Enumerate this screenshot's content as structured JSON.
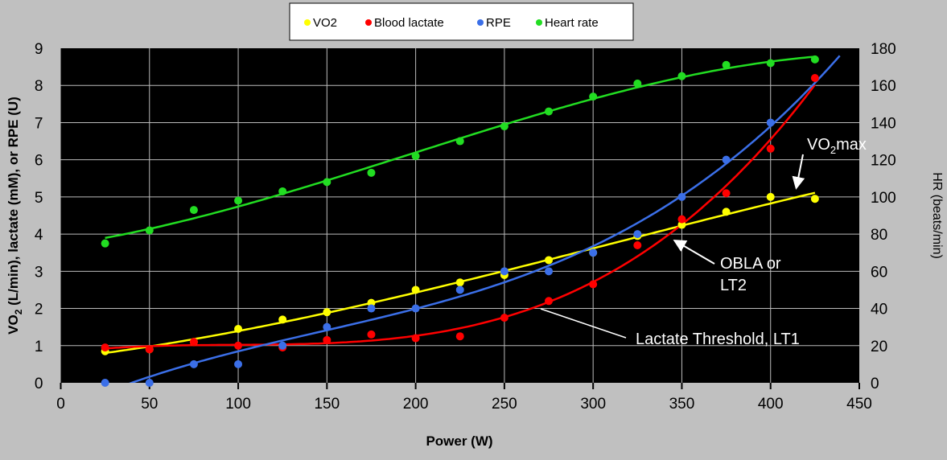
{
  "chart_data": {
    "type": "scatter",
    "xlabel": "Power (W)",
    "ylabel": "VO2 (L/min), lactate (mM), or RPE (U)",
    "ylabel_right": "HR (beats/min)",
    "xlim": [
      0,
      450
    ],
    "ylim": [
      0,
      9
    ],
    "ylim_right": [
      0,
      180
    ],
    "x_ticks": [
      0,
      50,
      100,
      150,
      200,
      250,
      300,
      350,
      400,
      450
    ],
    "y_ticks": [
      0,
      1,
      2,
      3,
      4,
      5,
      6,
      7,
      8,
      9
    ],
    "y_ticks_right": [
      0,
      20,
      40,
      60,
      80,
      100,
      120,
      140,
      160,
      180
    ],
    "grid": true,
    "background": "#000000",
    "legend_placement": "top",
    "trendlines": true,
    "series": [
      {
        "name": "VO2",
        "color": "#ffff00",
        "axis": "left",
        "x": [
          25,
          50,
          75,
          100,
          125,
          150,
          175,
          200,
          225,
          250,
          275,
          300,
          325,
          350,
          375,
          400,
          425
        ],
        "y": [
          0.85,
          0.9,
          1.1,
          1.45,
          1.7,
          1.9,
          2.15,
          2.5,
          2.7,
          2.9,
          3.3,
          3.5,
          3.95,
          4.25,
          4.6,
          5.0,
          4.95
        ]
      },
      {
        "name": "Blood lactate",
        "color": "#ff0000",
        "axis": "left",
        "x": [
          25,
          50,
          75,
          100,
          125,
          150,
          175,
          200,
          225,
          250,
          275,
          300,
          325,
          350,
          375,
          400,
          425
        ],
        "y": [
          0.95,
          0.9,
          1.1,
          1.0,
          0.95,
          1.15,
          1.3,
          1.2,
          1.25,
          1.75,
          2.2,
          2.65,
          3.7,
          4.4,
          5.1,
          6.3,
          8.2
        ]
      },
      {
        "name": "RPE",
        "color": "#3b6fe8",
        "axis": "left",
        "x": [
          25,
          50,
          75,
          100,
          125,
          150,
          175,
          200,
          225,
          250,
          275,
          300,
          325,
          350,
          375,
          400
        ],
        "y": [
          0,
          0,
          0.5,
          0.5,
          1.0,
          1.5,
          2.0,
          2.0,
          2.5,
          3.0,
          3.0,
          3.5,
          4.0,
          5.0,
          6.0,
          7.0
        ]
      },
      {
        "name": "Heart rate",
        "color": "#22dd22",
        "axis": "right",
        "x": [
          25,
          50,
          75,
          100,
          125,
          150,
          175,
          200,
          225,
          250,
          275,
          300,
          325,
          350,
          375,
          400,
          425
        ],
        "y": [
          75,
          82,
          93,
          98,
          103,
          108,
          113,
          122,
          130,
          138,
          146,
          154,
          161,
          165,
          171,
          172,
          174
        ]
      }
    ],
    "annotations": {
      "vo2max_main": "VO",
      "vo2max_sub": "2",
      "vo2max_tail": "max",
      "obla_line1": "OBLA or",
      "obla_line2": "LT2",
      "lt1": "Lactate Threshold, LT1"
    },
    "ylabel_parts": {
      "a": "VO",
      "sub": "2",
      "b": " (L/min), lactate (mM), or RPE (U)"
    }
  }
}
